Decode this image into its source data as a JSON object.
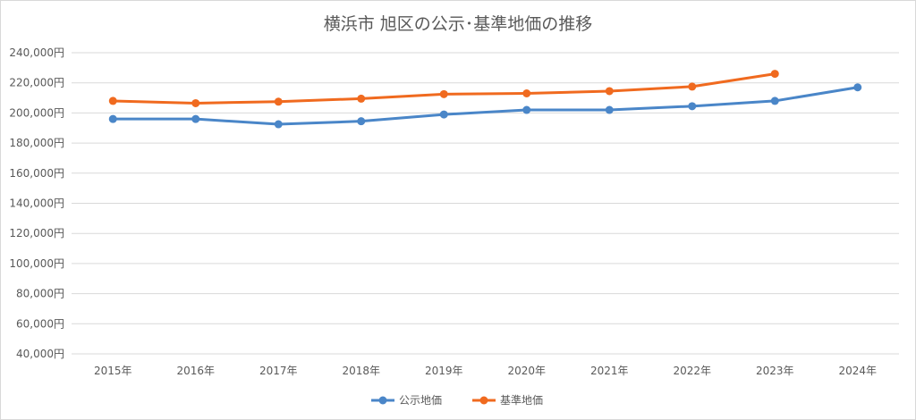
{
  "chart_data": {
    "type": "line",
    "title": "横浜市 旭区の公示･基準地価の推移",
    "categories": [
      "2015年",
      "2016年",
      "2017年",
      "2018年",
      "2019年",
      "2020年",
      "2021年",
      "2022年",
      "2023年",
      "2024年"
    ],
    "ylim": [
      40000,
      240000
    ],
    "yticks": [
      "40,000円",
      "60,000円",
      "80,000円",
      "100,000円",
      "120,000円",
      "140,000円",
      "160,000円",
      "180,000円",
      "200,000円",
      "220,000円",
      "240,000円"
    ],
    "grid": true,
    "legend_position": "bottom",
    "series": [
      {
        "name": "公示地価",
        "color": "#4a86c8",
        "values": [
          196000,
          196000,
          192500,
          194500,
          199000,
          202000,
          202000,
          204500,
          208000,
          217000
        ]
      },
      {
        "name": "基準地価",
        "color": "#f06a1f",
        "values": [
          208000,
          206500,
          207500,
          209500,
          212500,
          213000,
          214500,
          217500,
          226000,
          null
        ]
      }
    ]
  }
}
